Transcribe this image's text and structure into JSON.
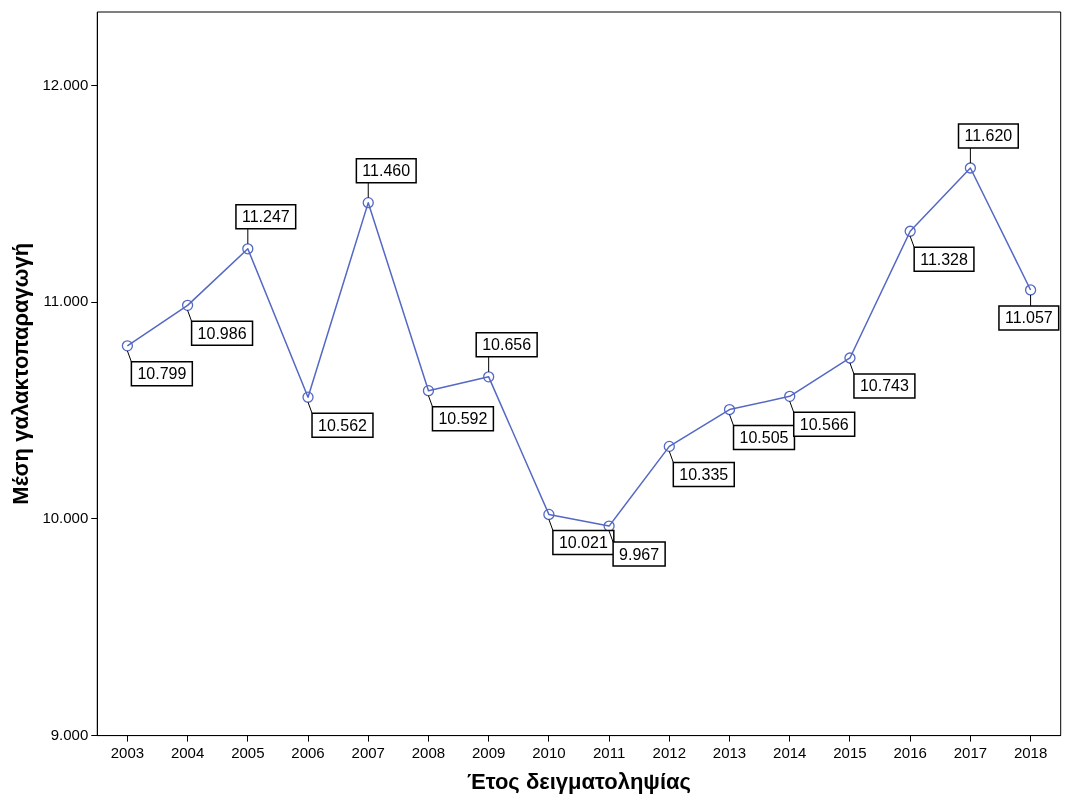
{
  "chart_data": {
    "type": "line",
    "xlabel": "Έτος δειγματοληψίας",
    "ylabel": "Μέση γαλακτοπαραγωγή",
    "categories": [
      "2003",
      "2004",
      "2005",
      "2006",
      "2007",
      "2008",
      "2009",
      "2010",
      "2011",
      "2012",
      "2013",
      "2014",
      "2015",
      "2016",
      "2017",
      "2018"
    ],
    "series": [
      {
        "color": "#5468c4",
        "values": [
          10799,
          10986,
          11247,
          10562,
          11460,
          10592,
          10656,
          10021,
          9967,
          10335,
          10505,
          10566,
          10743,
          11328,
          11620,
          11057
        ],
        "value_labels": [
          "10.799",
          "10.986",
          "11.247",
          "10.562",
          "11.460",
          "10.592",
          "10.656",
          "10.021",
          "9.967",
          "10.335",
          "10.505",
          "10.566",
          "10.743",
          "11.328",
          "11.620",
          "11.057"
        ]
      }
    ],
    "ylim": [
      9000,
      12340
    ],
    "yticks": [
      {
        "value": 9000,
        "label": "9.000"
      },
      {
        "value": 10000,
        "label": "10.000"
      },
      {
        "value": 11000,
        "label": "11.000"
      },
      {
        "value": 12000,
        "label": "12.000"
      }
    ],
    "grid": false,
    "legend": false,
    "marker": "circle",
    "line_style": "solid"
  }
}
